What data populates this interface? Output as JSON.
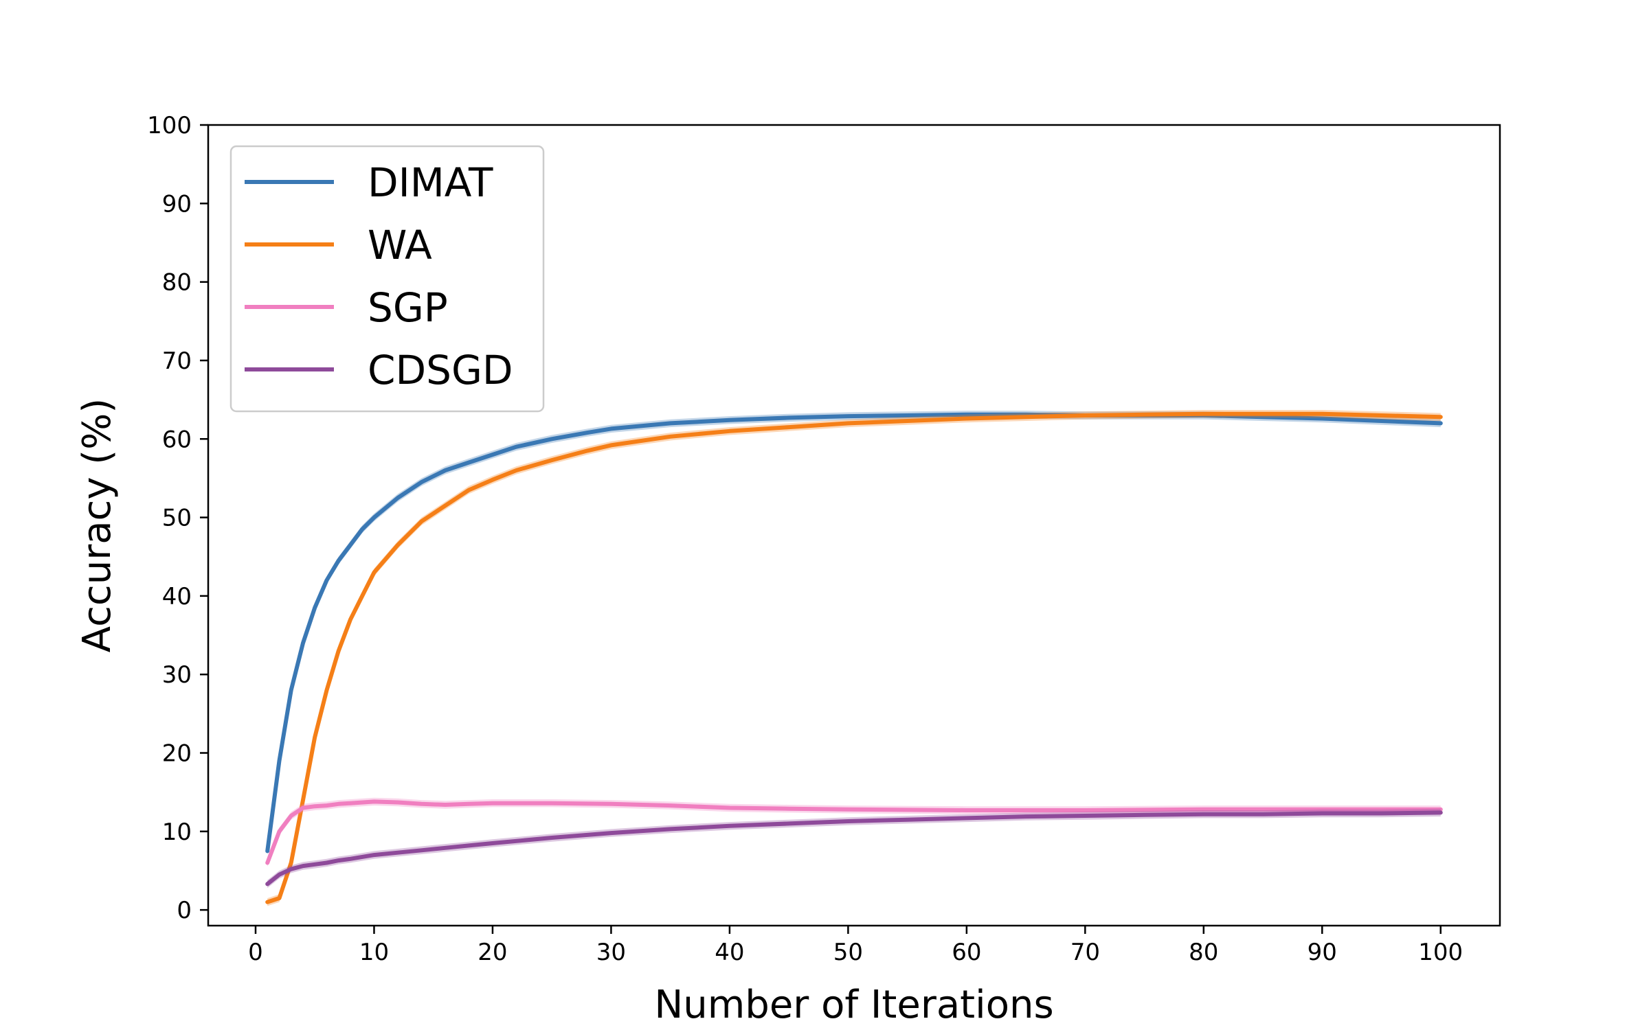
{
  "chart_data": {
    "type": "line",
    "title": "",
    "xlabel": "Number of Iterations",
    "ylabel": "Accuracy (%)",
    "xlim": [
      -4,
      105
    ],
    "ylim": [
      -2,
      100
    ],
    "xticks": [
      0,
      10,
      20,
      30,
      40,
      50,
      60,
      70,
      80,
      90,
      100
    ],
    "yticks": [
      0,
      10,
      20,
      30,
      40,
      50,
      60,
      70,
      80,
      90,
      100
    ],
    "grid": false,
    "legend_position": "top-left",
    "series": [
      {
        "name": "DIMAT",
        "color": "#3a78b4",
        "x": [
          1,
          2,
          3,
          4,
          5,
          6,
          7,
          8,
          9,
          10,
          12,
          14,
          16,
          18,
          20,
          22,
          25,
          28,
          30,
          35,
          40,
          45,
          50,
          55,
          60,
          65,
          70,
          75,
          80,
          85,
          90,
          95,
          100
        ],
        "values": [
          7.5,
          19,
          28,
          34,
          38.5,
          42,
          44.5,
          46.5,
          48.5,
          50,
          52.5,
          54.5,
          56,
          57,
          58,
          59,
          60,
          60.8,
          61.3,
          62,
          62.4,
          62.7,
          62.9,
          63,
          63.1,
          63.1,
          63,
          63,
          63,
          62.8,
          62.6,
          62.3,
          62
        ]
      },
      {
        "name": "WA",
        "color": "#f57f17",
        "x": [
          1,
          2,
          3,
          4,
          5,
          6,
          7,
          8,
          9,
          10,
          12,
          14,
          16,
          18,
          20,
          22,
          25,
          28,
          30,
          35,
          40,
          45,
          50,
          55,
          60,
          65,
          70,
          75,
          80,
          85,
          90,
          95,
          100
        ],
        "values": [
          1,
          1.5,
          6,
          14,
          22,
          28,
          33,
          37,
          40,
          43,
          46.5,
          49.5,
          51.5,
          53.5,
          54.8,
          56,
          57.3,
          58.5,
          59.2,
          60.3,
          61,
          61.5,
          62,
          62.3,
          62.6,
          62.8,
          63,
          63.1,
          63.2,
          63.2,
          63.2,
          63,
          62.8
        ]
      },
      {
        "name": "SGP",
        "color": "#f07fc0",
        "x": [
          1,
          2,
          3,
          4,
          5,
          6,
          7,
          8,
          10,
          12,
          14,
          16,
          18,
          20,
          25,
          30,
          35,
          40,
          45,
          50,
          60,
          70,
          80,
          90,
          100
        ],
        "values": [
          6,
          10,
          12,
          13,
          13.2,
          13.3,
          13.5,
          13.6,
          13.8,
          13.7,
          13.5,
          13.4,
          13.5,
          13.6,
          13.6,
          13.5,
          13.3,
          13,
          12.9,
          12.8,
          12.7,
          12.7,
          12.8,
          12.8,
          12.8
        ]
      },
      {
        "name": "CDSGD",
        "color": "#8e4a9a",
        "x": [
          1,
          2,
          3,
          4,
          5,
          6,
          7,
          8,
          10,
          12,
          14,
          16,
          18,
          20,
          25,
          30,
          35,
          40,
          45,
          50,
          55,
          60,
          65,
          70,
          75,
          80,
          85,
          90,
          95,
          100
        ],
        "values": [
          3.3,
          4.5,
          5.2,
          5.6,
          5.8,
          6,
          6.3,
          6.5,
          7,
          7.3,
          7.6,
          7.9,
          8.2,
          8.5,
          9.2,
          9.8,
          10.3,
          10.7,
          11,
          11.3,
          11.5,
          11.7,
          11.9,
          12,
          12.1,
          12.2,
          12.2,
          12.3,
          12.3,
          12.4
        ]
      }
    ]
  }
}
